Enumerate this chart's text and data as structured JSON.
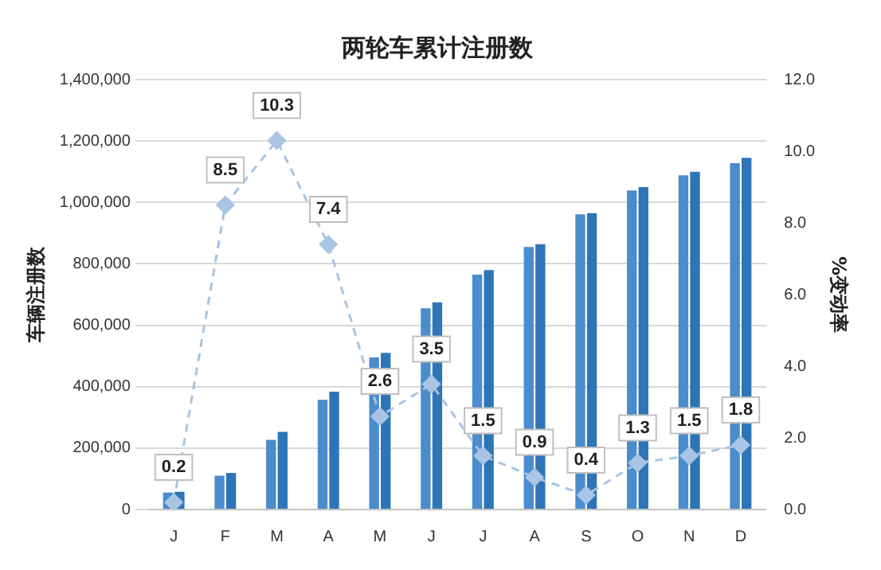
{
  "chart_data": {
    "type": "bar",
    "title": "两轮车累计注册数",
    "ylabel": "车辆注册数",
    "y2label": "%变动率",
    "categories": [
      "J",
      "F",
      "M",
      "A",
      "M",
      "J",
      "J",
      "A",
      "S",
      "O",
      "N",
      "D"
    ],
    "series": [
      {
        "color": "#4a8ccc",
        "values": [
          55000,
          110000,
          227000,
          357000,
          495000,
          655000,
          765000,
          855000,
          961000,
          1039000,
          1088000,
          1128000
        ]
      },
      {
        "color": "#2e75b6",
        "values": [
          58000,
          119000,
          253000,
          384000,
          510000,
          675000,
          780000,
          864000,
          965000,
          1050000,
          1100000,
          1145000
        ]
      },
      {
        "type": "line",
        "axis": "y2",
        "color": "#a9c4e4",
        "marker": "diamond",
        "line_style": "dashed",
        "values": [
          0.2,
          8.5,
          10.3,
          7.4,
          2.6,
          3.5,
          1.5,
          0.9,
          0.4,
          1.3,
          1.5,
          1.8
        ],
        "value_labels": [
          "0.2",
          "8.5",
          "10.3",
          "7.4",
          "2.6",
          "3.5",
          "1.5",
          "0.9",
          "0.4",
          "1.3",
          "1.5",
          "1.8"
        ]
      }
    ],
    "ylim": [
      0,
      1400000
    ],
    "yticks": [
      {
        "value": 0,
        "label": "0"
      },
      {
        "value": 200000,
        "label": "200,000"
      },
      {
        "value": 400000,
        "label": "400,000"
      },
      {
        "value": 600000,
        "label": "600,000"
      },
      {
        "value": 800000,
        "label": "800,000"
      },
      {
        "value": 1000000,
        "label": "1,000,000"
      },
      {
        "value": 1200000,
        "label": "1,200,000"
      },
      {
        "value": 1400000,
        "label": "1,400,000"
      }
    ],
    "y2lim": [
      0,
      12
    ],
    "y2ticks": [
      {
        "value": 0,
        "label": "0.0"
      },
      {
        "value": 2,
        "label": "2.0"
      },
      {
        "value": 4,
        "label": "4.0"
      },
      {
        "value": 6,
        "label": "6.0"
      },
      {
        "value": 8,
        "label": "8.0"
      },
      {
        "value": 10,
        "label": "10.0"
      },
      {
        "value": 12,
        "label": "12.0"
      }
    ],
    "grid": "y",
    "legend": false
  }
}
